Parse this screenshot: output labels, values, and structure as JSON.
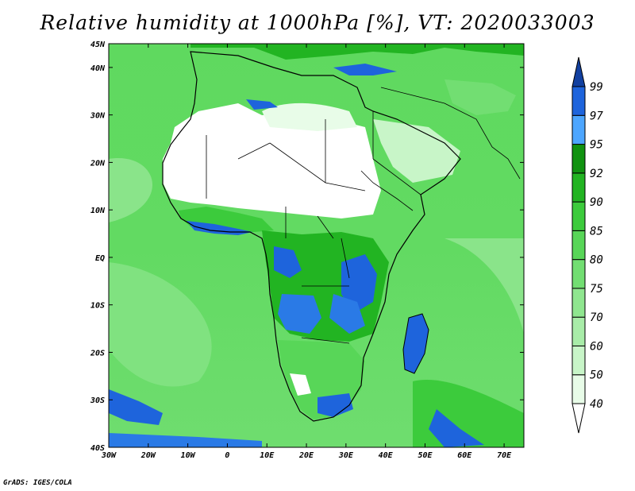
{
  "title": "Relative humidity at 1000hPa [%], VT: 2020033003",
  "credit": "GrADS: IGES/COLA",
  "map": {
    "lon_range": [
      -30,
      75
    ],
    "lat_range": [
      -40,
      45
    ],
    "lon_ticks": [
      "30W",
      "20W",
      "10W",
      "0",
      "10E",
      "20E",
      "30E",
      "40E",
      "50E",
      "60E",
      "70E"
    ],
    "lat_ticks": [
      "45N",
      "40N",
      "30N",
      "20N",
      "10N",
      "EQ",
      "10S",
      "20S",
      "30S",
      "40S"
    ]
  },
  "colorbar": {
    "levels": [
      "40",
      "50",
      "60",
      "70",
      "75",
      "80",
      "85",
      "90",
      "92",
      "95",
      "97",
      "99"
    ],
    "colors": [
      "#ffffff",
      "#e8fce8",
      "#c8f5c8",
      "#a8eca8",
      "#8fe68f",
      "#72de72",
      "#58d658",
      "#3ccb3c",
      "#22b422",
      "#109210",
      "#4da6ff",
      "#1e64dc",
      "#1240a0"
    ],
    "extend": "both"
  },
  "legend": {
    "land_outline_color": "#000000",
    "dry_color": "#ffffff",
    "moist_color": "#1e64dc"
  }
}
